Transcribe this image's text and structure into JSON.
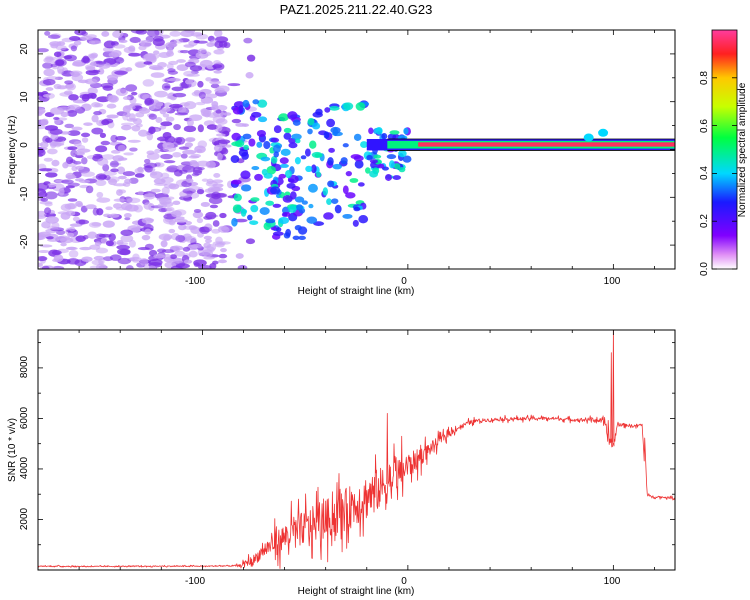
{
  "title": "PAZ1.2025.211.22.40.G23",
  "chart_data": [
    {
      "type": "heatmap",
      "xlabel": "Height of straight line (km)",
      "ylabel": "Frequency (Hz)",
      "xlim": [
        -180,
        130
      ],
      "ylim": [
        -25,
        25
      ],
      "xticks": [
        -100,
        0,
        100
      ],
      "yticks": [
        -20,
        -10,
        0,
        10,
        20
      ],
      "colorbar": {
        "label": "Normalized spectral amplitude",
        "range": [
          0,
          1
        ],
        "ticks": [
          0.0,
          0.2,
          0.4,
          0.6,
          0.8
        ],
        "tick_labels": [
          "0.0",
          "0.2",
          "0.4",
          "0.6",
          "0.8"
        ],
        "colormap": "rainbow"
      },
      "features": [
        {
          "x_range": [
            -180,
            -80
          ],
          "freq_range": [
            -25,
            25
          ],
          "amplitude": 0.05
        },
        {
          "x_range": [
            -80,
            0
          ],
          "freq_range": [
            -15,
            8
          ],
          "amplitude": 0.25
        },
        {
          "x_range": [
            0,
            130
          ],
          "freq": 1,
          "amplitude": 0.95
        }
      ]
    },
    {
      "type": "line",
      "xlabel": "Height of straight line (km)",
      "ylabel": "SNR (10 * v/v)",
      "xlim": [
        -180,
        130
      ],
      "ylim": [
        0,
        9500
      ],
      "xticks": [
        -100,
        0,
        100
      ],
      "yticks": [
        2000,
        4000,
        6000,
        8000
      ],
      "color": "#ee3333",
      "series": [
        {
          "x": [
            -180,
            -150,
            -120,
            -100,
            -90,
            -82,
            -75,
            -70,
            -60,
            -50,
            -40,
            -30,
            -20,
            -10,
            -5,
            0,
            5,
            10,
            15,
            20,
            25,
            30,
            35,
            40,
            50,
            60,
            70,
            80,
            90,
            95,
            98,
            100,
            102,
            105,
            110,
            114,
            116,
            120,
            130
          ],
          "y": [
            150,
            140,
            150,
            150,
            160,
            170,
            400,
            800,
            1300,
            1700,
            2000,
            2400,
            2900,
            3400,
            3800,
            4100,
            4400,
            4750,
            5100,
            5400,
            5650,
            5850,
            5920,
            5950,
            5980,
            6000,
            6000,
            5950,
            5950,
            5900,
            5200,
            4900,
            5750,
            5750,
            5700,
            5750,
            2950,
            2900,
            2850
          ],
          "noise": [
            30,
            30,
            30,
            30,
            40,
            60,
            350,
            500,
            900,
            1100,
            1300,
            1400,
            1500,
            1300,
            1100,
            900,
            650,
            450,
            300,
            200,
            150,
            130,
            110,
            110,
            110,
            100,
            100,
            100,
            120,
            150,
            600,
            300,
            120,
            100,
            100,
            100,
            70,
            60,
            60
          ],
          "spikes": [
            {
              "x": -10,
              "y": 6200
            },
            {
              "x": 100,
              "y": 9500
            },
            {
              "x": 99,
              "y": 8600
            }
          ]
        }
      ]
    }
  ]
}
